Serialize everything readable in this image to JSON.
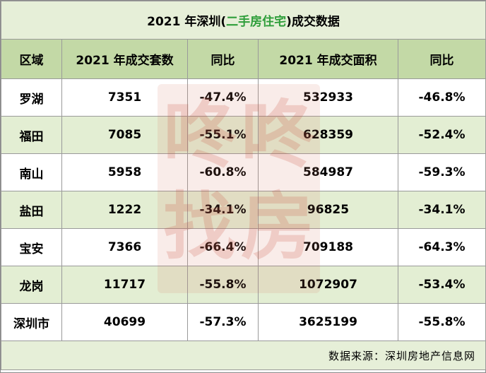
{
  "title_prefix": "2021 年深圳(",
  "title_highlight": "二手房住宅",
  "title_suffix": ")成交数据",
  "headers": [
    "区域",
    "2021 年成交套数",
    "同比",
    "2021 年成交面积",
    "同比"
  ],
  "rows": [
    {
      "district": "罗湖",
      "units": "7351",
      "units_yoy": "-47.4%",
      "area": "532933",
      "area_yoy": "-46.8%"
    },
    {
      "district": "福田",
      "units": "7085",
      "units_yoy": "-55.1%",
      "area": "628359",
      "area_yoy": "-52.4%"
    },
    {
      "district": "南山",
      "units": "5958",
      "units_yoy": "-60.8%",
      "area": "584987",
      "area_yoy": "-59.3%"
    },
    {
      "district": "盐田",
      "units": "1222",
      "units_yoy": "-34.1%",
      "area": "96825",
      "area_yoy": "-34.1%"
    },
    {
      "district": "宝安",
      "units": "7366",
      "units_yoy": "-66.4%",
      "area": "709188",
      "area_yoy": "-64.3%"
    },
    {
      "district": "龙岗",
      "units": "11717",
      "units_yoy": "-55.8%",
      "area": "1072907",
      "area_yoy": "-53.4%"
    },
    {
      "district": "深圳市",
      "units": "40699",
      "units_yoy": "-57.3%",
      "area": "3625199",
      "area_yoy": "-55.8%"
    }
  ],
  "source": "数据来源：深圳房地产信息网",
  "watermark": {
    "chars": [
      "咚",
      "咚",
      "找",
      "房"
    ],
    "color": "#c8503c"
  }
}
